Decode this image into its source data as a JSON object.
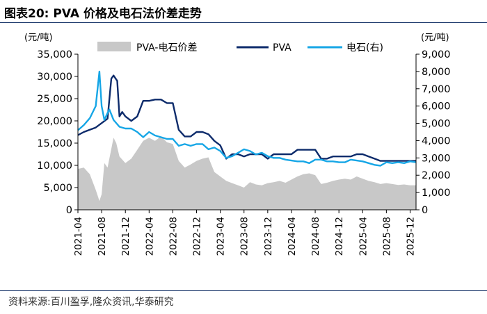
{
  "title": "图表20:   PVA 价格及电石法价差走势",
  "source": "资料来源:百川盈孚,隆众资讯,华泰研究",
  "colors": {
    "spread": "#c8c8c8",
    "pva": "#0d2b6b",
    "carbide": "#16a6e6",
    "rule": "#1f3b6e"
  },
  "chart_data": {
    "type": "line",
    "y_unit_left": "(元/吨)",
    "y_unit_right": "(元/吨)",
    "ylim_left": [
      0,
      35000
    ],
    "yticks_left": [
      "0",
      "5,000",
      "10,000",
      "15,000",
      "20,000",
      "25,000",
      "30,000",
      "35,000"
    ],
    "ylim_right": [
      0,
      9000
    ],
    "yticks_right": [
      "0",
      "1,000",
      "2,000",
      "3,000",
      "4,000",
      "5,000",
      "6,000",
      "7,000",
      "8,000",
      "9,000"
    ],
    "xlim": [
      "2021-04",
      "2026-01"
    ],
    "xticks": [
      "2021-04",
      "2021-08",
      "2021-12",
      "2022-04",
      "2022-08",
      "2022-12",
      "2023-04",
      "2023-08",
      "2023-12",
      "2024-04",
      "2024-08",
      "2024-12",
      "2025-04",
      "2025-08",
      "2025-12"
    ],
    "legend_position": "top",
    "series": [
      {
        "name": "PVA-电石价差",
        "type": "area",
        "axis": "left",
        "points": [
          [
            "2021-04",
            9200
          ],
          [
            "2021-05",
            9500
          ],
          [
            "2021-06",
            8000
          ],
          [
            "2021-07",
            4500
          ],
          [
            "2021-07-20",
            2000
          ],
          [
            "2021-08",
            3500
          ],
          [
            "2021-08-15",
            10500
          ],
          [
            "2021-09",
            9500
          ],
          [
            "2021-10",
            16200
          ],
          [
            "2021-10-15",
            15000
          ],
          [
            "2021-11",
            12000
          ],
          [
            "2021-12",
            10500
          ],
          [
            "2022-01",
            11500
          ],
          [
            "2022-02",
            13500
          ],
          [
            "2022-03",
            15500
          ],
          [
            "2022-04",
            16200
          ],
          [
            "2022-05",
            15500
          ],
          [
            "2022-06",
            16500
          ],
          [
            "2022-07",
            15200
          ],
          [
            "2022-08",
            14800
          ],
          [
            "2022-09",
            11000
          ],
          [
            "2022-10",
            9500
          ],
          [
            "2022-11",
            10200
          ],
          [
            "2022-12",
            11000
          ],
          [
            "2023-01",
            11500
          ],
          [
            "2023-02",
            11800
          ],
          [
            "2023-03",
            8500
          ],
          [
            "2023-04",
            7500
          ],
          [
            "2023-05",
            6500
          ],
          [
            "2023-06",
            6000
          ],
          [
            "2023-07",
            5500
          ],
          [
            "2023-08",
            5000
          ],
          [
            "2023-09",
            6200
          ],
          [
            "2023-10",
            5700
          ],
          [
            "2023-11",
            5500
          ],
          [
            "2023-12",
            6000
          ],
          [
            "2024-01",
            6200
          ],
          [
            "2024-02",
            6500
          ],
          [
            "2024-03",
            6100
          ],
          [
            "2024-04",
            6800
          ],
          [
            "2024-05",
            7500
          ],
          [
            "2024-06",
            8000
          ],
          [
            "2024-07",
            8200
          ],
          [
            "2024-08",
            7800
          ],
          [
            "2024-09",
            5800
          ],
          [
            "2024-10",
            6100
          ],
          [
            "2024-11",
            6500
          ],
          [
            "2024-12",
            6800
          ],
          [
            "2025-01",
            7000
          ],
          [
            "2025-02",
            6800
          ],
          [
            "2025-03",
            7500
          ],
          [
            "2025-04",
            7000
          ],
          [
            "2025-05",
            6500
          ],
          [
            "2025-06",
            6200
          ],
          [
            "2025-07",
            5800
          ],
          [
            "2025-08",
            6000
          ],
          [
            "2025-09",
            5800
          ],
          [
            "2025-10",
            5600
          ],
          [
            "2025-11",
            5700
          ],
          [
            "2025-12",
            5500
          ],
          [
            "2026-01",
            5500
          ]
        ]
      },
      {
        "name": "PVA",
        "type": "line",
        "axis": "left",
        "points": [
          [
            "2021-04",
            16800
          ],
          [
            "2021-05",
            17500
          ],
          [
            "2021-06",
            18000
          ],
          [
            "2021-07",
            18500
          ],
          [
            "2021-08",
            19500
          ],
          [
            "2021-09",
            20500
          ],
          [
            "2021-09-20",
            29500
          ],
          [
            "2021-10",
            30200
          ],
          [
            "2021-10-20",
            29000
          ],
          [
            "2021-11",
            21000
          ],
          [
            "2021-11-15",
            22000
          ],
          [
            "2021-12",
            21000
          ],
          [
            "2022-01",
            20000
          ],
          [
            "2022-02",
            21000
          ],
          [
            "2022-03",
            24500
          ],
          [
            "2022-04",
            24500
          ],
          [
            "2022-05",
            24800
          ],
          [
            "2022-06",
            24800
          ],
          [
            "2022-07",
            24000
          ],
          [
            "2022-08",
            24000
          ],
          [
            "2022-09",
            18000
          ],
          [
            "2022-10",
            16500
          ],
          [
            "2022-11",
            16500
          ],
          [
            "2022-12",
            17500
          ],
          [
            "2023-01",
            17500
          ],
          [
            "2023-02",
            17000
          ],
          [
            "2023-03",
            15500
          ],
          [
            "2023-04",
            14500
          ],
          [
            "2023-05",
            11500
          ],
          [
            "2023-06",
            12500
          ],
          [
            "2023-07",
            12500
          ],
          [
            "2023-08",
            12000
          ],
          [
            "2023-09",
            12500
          ],
          [
            "2023-10",
            12500
          ],
          [
            "2023-11",
            12500
          ],
          [
            "2023-12",
            11500
          ],
          [
            "2024-01",
            12500
          ],
          [
            "2024-02",
            12500
          ],
          [
            "2024-03",
            12500
          ],
          [
            "2024-04",
            12500
          ],
          [
            "2024-05",
            13500
          ],
          [
            "2024-06",
            13500
          ],
          [
            "2024-07",
            13500
          ],
          [
            "2024-08",
            13500
          ],
          [
            "2024-09",
            11500
          ],
          [
            "2024-10",
            11500
          ],
          [
            "2024-11",
            12000
          ],
          [
            "2024-12",
            12000
          ],
          [
            "2025-01",
            12000
          ],
          [
            "2025-02",
            12000
          ],
          [
            "2025-03",
            12500
          ],
          [
            "2025-04",
            12500
          ],
          [
            "2025-05",
            12000
          ],
          [
            "2025-06",
            11500
          ],
          [
            "2025-07",
            11000
          ],
          [
            "2025-08",
            11000
          ],
          [
            "2025-09",
            11000
          ],
          [
            "2025-10",
            11000
          ],
          [
            "2025-11",
            11000
          ],
          [
            "2025-12",
            11000
          ],
          [
            "2026-01",
            11000
          ]
        ]
      },
      {
        "name": "电石(右)",
        "type": "line",
        "axis": "right",
        "points": [
          [
            "2021-04",
            4600
          ],
          [
            "2021-05",
            4900
          ],
          [
            "2021-06",
            5300
          ],
          [
            "2021-07",
            6000
          ],
          [
            "2021-07-20",
            8000
          ],
          [
            "2021-08",
            6000
          ],
          [
            "2021-08-15",
            5200
          ],
          [
            "2021-09",
            5600
          ],
          [
            "2021-09-10",
            5800
          ],
          [
            "2021-10",
            5200
          ],
          [
            "2021-11",
            4800
          ],
          [
            "2021-12",
            4700
          ],
          [
            "2022-01",
            4700
          ],
          [
            "2022-02",
            4500
          ],
          [
            "2022-03",
            4200
          ],
          [
            "2022-04",
            4500
          ],
          [
            "2022-05",
            4300
          ],
          [
            "2022-06",
            4200
          ],
          [
            "2022-07",
            4100
          ],
          [
            "2022-08",
            4100
          ],
          [
            "2022-09",
            3700
          ],
          [
            "2022-10",
            3800
          ],
          [
            "2022-11",
            3700
          ],
          [
            "2022-12",
            3800
          ],
          [
            "2023-01",
            3800
          ],
          [
            "2023-02",
            3500
          ],
          [
            "2023-03",
            3600
          ],
          [
            "2023-04",
            3400
          ],
          [
            "2023-05",
            3000
          ],
          [
            "2023-06",
            3100
          ],
          [
            "2023-07",
            3300
          ],
          [
            "2023-08",
            3500
          ],
          [
            "2023-09",
            3400
          ],
          [
            "2023-10",
            3200
          ],
          [
            "2023-11",
            3300
          ],
          [
            "2023-12",
            3100
          ],
          [
            "2024-01",
            3000
          ],
          [
            "2024-02",
            3000
          ],
          [
            "2024-03",
            2900
          ],
          [
            "2024-04",
            2850
          ],
          [
            "2024-05",
            2800
          ],
          [
            "2024-06",
            2800
          ],
          [
            "2024-07",
            2700
          ],
          [
            "2024-08",
            2900
          ],
          [
            "2024-09",
            2900
          ],
          [
            "2024-10",
            2800
          ],
          [
            "2024-11",
            2800
          ],
          [
            "2024-12",
            2750
          ],
          [
            "2025-01",
            2750
          ],
          [
            "2025-02",
            2900
          ],
          [
            "2025-03",
            2850
          ],
          [
            "2025-04",
            2800
          ],
          [
            "2025-05",
            2700
          ],
          [
            "2025-06",
            2600
          ],
          [
            "2025-07",
            2550
          ],
          [
            "2025-08",
            2750
          ],
          [
            "2025-09",
            2700
          ],
          [
            "2025-10",
            2750
          ],
          [
            "2025-11",
            2700
          ],
          [
            "2025-12",
            2800
          ],
          [
            "2026-01",
            2750
          ]
        ]
      }
    ]
  }
}
